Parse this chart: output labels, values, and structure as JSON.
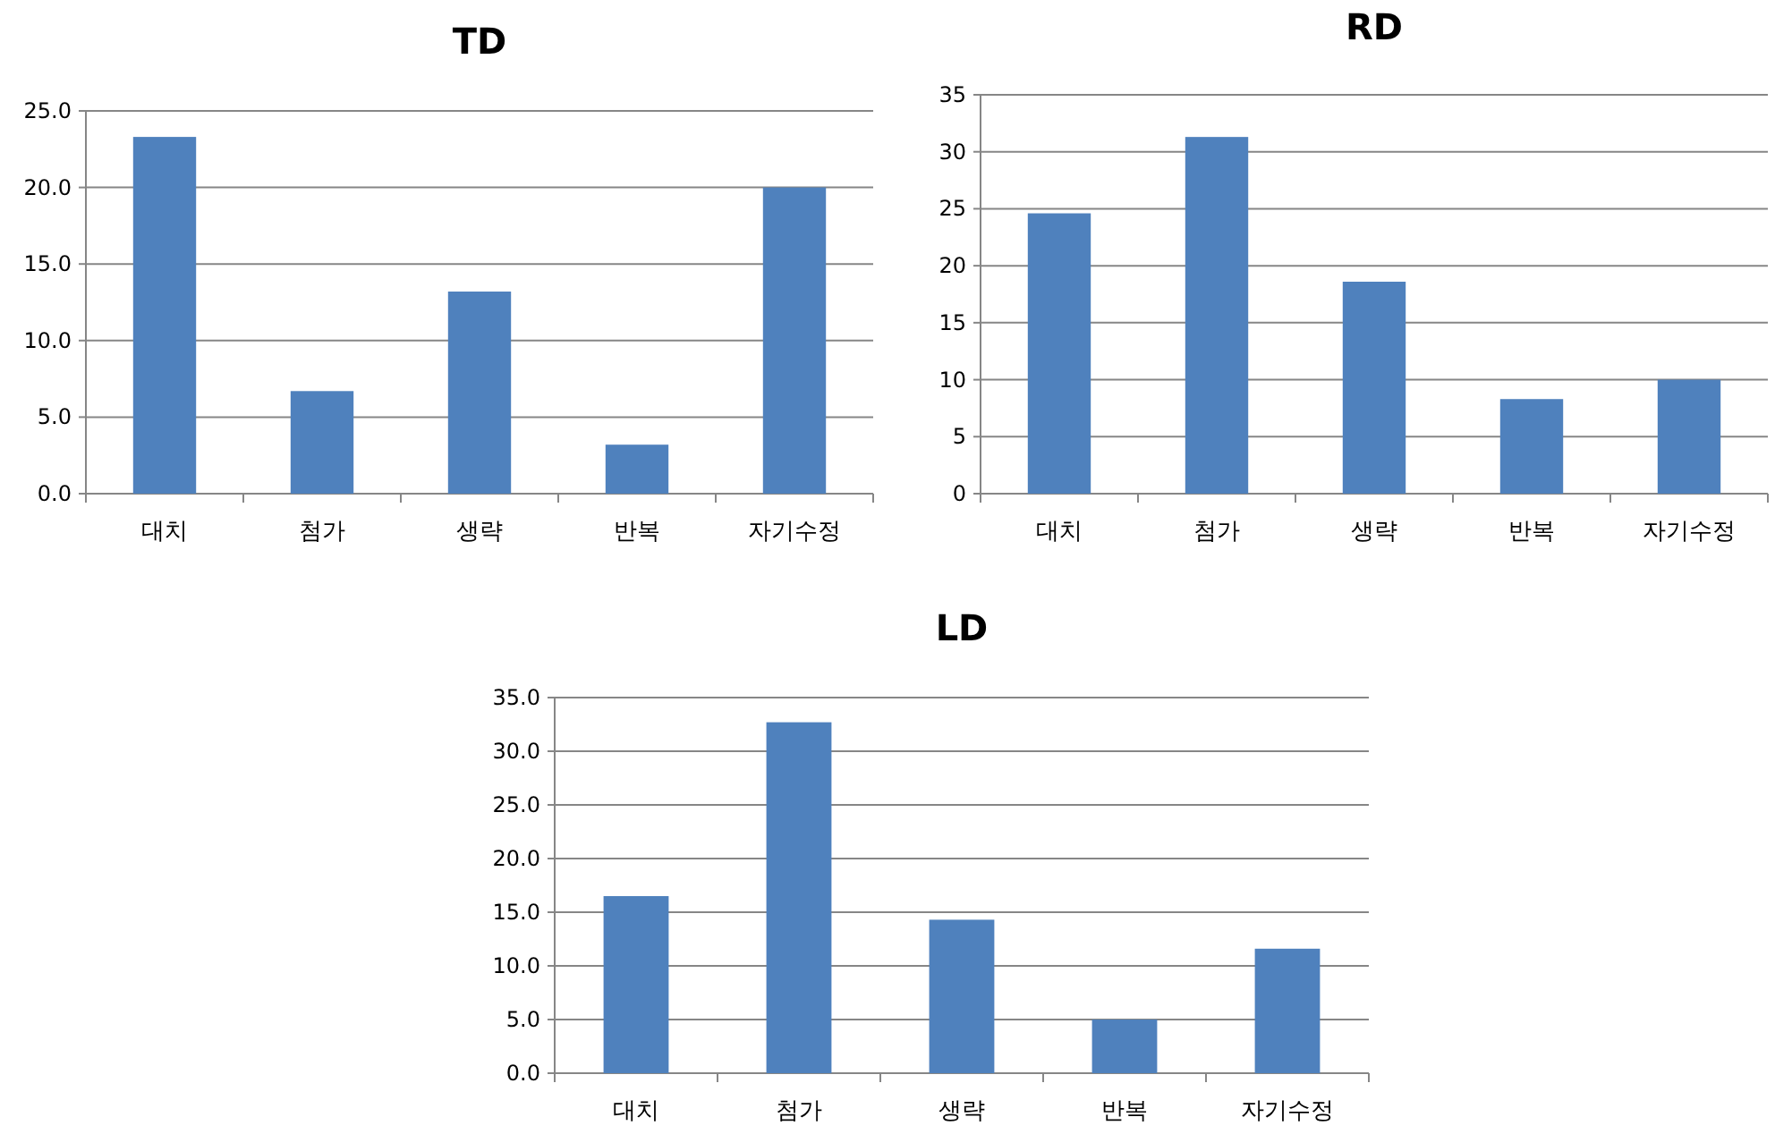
{
  "chart_data": [
    {
      "type": "bar",
      "title": "TD",
      "categories": [
        "대치",
        "첨가",
        "생략",
        "반복",
        "자기수정"
      ],
      "values": [
        23.3,
        6.7,
        13.2,
        3.2,
        20.0
      ],
      "color": "#4f81bd",
      "ylim": [
        0,
        25
      ],
      "yticks": [
        {
          "value": 0,
          "label": "0.0"
        },
        {
          "value": 5,
          "label": "5.0"
        },
        {
          "value": 10,
          "label": "10.0"
        },
        {
          "value": 15,
          "label": "15.0"
        },
        {
          "value": 20,
          "label": "20.0"
        },
        {
          "value": 25,
          "label": "25.0"
        }
      ],
      "grid": "y"
    },
    {
      "type": "bar",
      "title": "RD",
      "categories": [
        "대치",
        "첨가",
        "생략",
        "반복",
        "자기수정"
      ],
      "values": [
        24.6,
        31.3,
        18.6,
        8.3,
        10.0
      ],
      "color": "#4f81bd",
      "ylim": [
        0,
        35
      ],
      "yticks": [
        0,
        5,
        10,
        15,
        20,
        25,
        30,
        35
      ],
      "grid": "y"
    },
    {
      "type": "bar",
      "title": "LD",
      "categories": [
        "대치",
        "첨가",
        "생략",
        "반복",
        "자기수정"
      ],
      "values": [
        16.5,
        32.7,
        14.3,
        5.0,
        11.6
      ],
      "color": "#4f81bd",
      "ylim": [
        0,
        35
      ],
      "yticks": [
        {
          "value": 0,
          "label": "0.0"
        },
        {
          "value": 5,
          "label": "5.0"
        },
        {
          "value": 10,
          "label": "10.0"
        },
        {
          "value": 15,
          "label": "15.0"
        },
        {
          "value": 20,
          "label": "20.0"
        },
        {
          "value": 25,
          "label": "25.0"
        },
        {
          "value": 30,
          "label": "30.0"
        },
        {
          "value": 35,
          "label": "35.0"
        }
      ],
      "grid": "y"
    }
  ]
}
